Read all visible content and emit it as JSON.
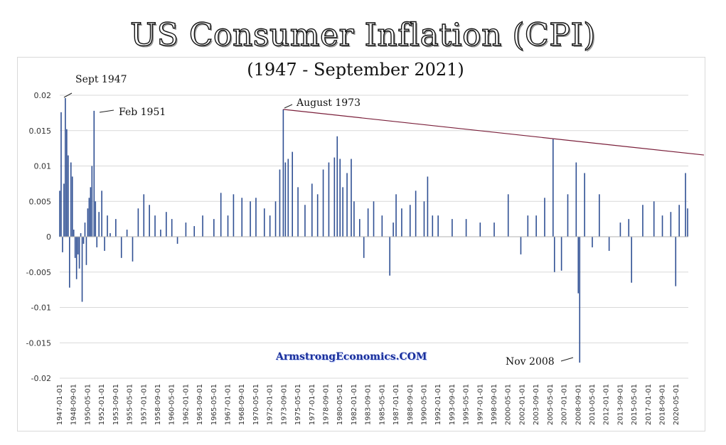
{
  "chart_data": {
    "type": "bar",
    "title": "US Consumer Inflation (CPI)",
    "subtitle": "(1947 - September 2021)",
    "xlabel": "",
    "ylabel": "",
    "ylim": [
      -0.02,
      0.02
    ],
    "y_ticks": [
      "0.02",
      "0.015",
      "0.01",
      "0.005",
      "0",
      "-0.005",
      "-0.01",
      "-0.015",
      "-0.02"
    ],
    "x_tick_labels": [
      "1947-01-01",
      "1948-09-01",
      "1950-05-01",
      "1952-01-01",
      "1953-09-01",
      "1955-05-01",
      "1957-01-01",
      "1958-09-01",
      "1960-05-01",
      "1962-01-01",
      "1963-09-01",
      "1965-05-01",
      "1967-01-01",
      "1968-09-01",
      "1970-05-01",
      "1972-01-01",
      "1973-09-01",
      "1975-05-01",
      "1977-01-01",
      "1978-09-01",
      "1980-05-01",
      "1982-01-01",
      "1983-09-01",
      "1985-05-01",
      "1987-01-01",
      "1988-09-01",
      "1990-05-01",
      "1992-01-01",
      "1993-09-01",
      "1995-05-01",
      "1997-01-01",
      "1998-09-01",
      "2000-05-01",
      "2002-01-01",
      "2003-09-01",
      "2005-05-01",
      "2007-01-01",
      "2008-09-01",
      "2010-05-01",
      "2012-01-01",
      "2013-09-01",
      "2015-05-01",
      "2017-01-01",
      "2018-09-01",
      "2020-05-01"
    ],
    "series": [
      {
        "name": "",
        "color": "#2f4f93",
        "points": [
          {
            "x": "1947-01",
            "y": 0.0065
          },
          {
            "x": "1947-03",
            "y": 0.0176
          },
          {
            "x": "1947-05",
            "y": -0.0022
          },
          {
            "x": "1947-07",
            "y": 0.0075
          },
          {
            "x": "1947-09",
            "y": 0.0196
          },
          {
            "x": "1947-11",
            "y": 0.0152
          },
          {
            "x": "1948-01",
            "y": 0.0115
          },
          {
            "x": "1948-03",
            "y": -0.0072
          },
          {
            "x": "1948-05",
            "y": 0.0105
          },
          {
            "x": "1948-07",
            "y": 0.0085
          },
          {
            "x": "1948-09",
            "y": 0.001
          },
          {
            "x": "1948-11",
            "y": -0.003
          },
          {
            "x": "1949-01",
            "y": -0.006
          },
          {
            "x": "1949-03",
            "y": -0.0025
          },
          {
            "x": "1949-05",
            "y": -0.0045
          },
          {
            "x": "1949-07",
            "y": 0.0005
          },
          {
            "x": "1949-09",
            "y": -0.0092
          },
          {
            "x": "1949-11",
            "y": -0.001
          },
          {
            "x": "1950-01",
            "y": 0.002
          },
          {
            "x": "1950-03",
            "y": -0.004
          },
          {
            "x": "1950-05",
            "y": 0.004
          },
          {
            "x": "1950-07",
            "y": 0.0055
          },
          {
            "x": "1950-09",
            "y": 0.007
          },
          {
            "x": "1950-11",
            "y": 0.01
          },
          {
            "x": "1951-02",
            "y": 0.0178
          },
          {
            "x": "1951-04",
            "y": 0.005
          },
          {
            "x": "1951-06",
            "y": -0.0015
          },
          {
            "x": "1951-09",
            "y": 0.0035
          },
          {
            "x": "1952-01",
            "y": 0.0065
          },
          {
            "x": "1952-05",
            "y": -0.002
          },
          {
            "x": "1952-09",
            "y": 0.003
          },
          {
            "x": "1953-01",
            "y": 0.0005
          },
          {
            "x": "1953-09",
            "y": 0.0025
          },
          {
            "x": "1954-05",
            "y": -0.003
          },
          {
            "x": "1955-01",
            "y": 0.001
          },
          {
            "x": "1955-09",
            "y": -0.0035
          },
          {
            "x": "1956-05",
            "y": 0.004
          },
          {
            "x": "1957-01",
            "y": 0.006
          },
          {
            "x": "1957-09",
            "y": 0.0045
          },
          {
            "x": "1958-05",
            "y": 0.003
          },
          {
            "x": "1959-01",
            "y": 0.001
          },
          {
            "x": "1959-09",
            "y": 0.0035
          },
          {
            "x": "1960-05",
            "y": 0.0025
          },
          {
            "x": "1961-01",
            "y": -0.001
          },
          {
            "x": "1962-01",
            "y": 0.002
          },
          {
            "x": "1963-01",
            "y": 0.0015
          },
          {
            "x": "1964-01",
            "y": 0.003
          },
          {
            "x": "1965-05",
            "y": 0.0025
          },
          {
            "x": "1966-03",
            "y": 0.0062
          },
          {
            "x": "1967-01",
            "y": 0.003
          },
          {
            "x": "1967-09",
            "y": 0.006
          },
          {
            "x": "1968-09",
            "y": 0.0055
          },
          {
            "x": "1969-09",
            "y": 0.005
          },
          {
            "x": "1970-05",
            "y": 0.0055
          },
          {
            "x": "1971-05",
            "y": 0.004
          },
          {
            "x": "1972-01",
            "y": 0.003
          },
          {
            "x": "1972-09",
            "y": 0.005
          },
          {
            "x": "1973-03",
            "y": 0.0095
          },
          {
            "x": "1973-08",
            "y": 0.018
          },
          {
            "x": "1973-11",
            "y": 0.0105
          },
          {
            "x": "1974-03",
            "y": 0.011
          },
          {
            "x": "1974-09",
            "y": 0.012
          },
          {
            "x": "1975-05",
            "y": 0.007
          },
          {
            "x": "1976-03",
            "y": 0.0045
          },
          {
            "x": "1977-01",
            "y": 0.0075
          },
          {
            "x": "1977-09",
            "y": 0.006
          },
          {
            "x": "1978-05",
            "y": 0.0095
          },
          {
            "x": "1979-01",
            "y": 0.0105
          },
          {
            "x": "1979-09",
            "y": 0.0112
          },
          {
            "x": "1980-01",
            "y": 0.0142
          },
          {
            "x": "1980-05",
            "y": 0.011
          },
          {
            "x": "1980-09",
            "y": 0.007
          },
          {
            "x": "1981-03",
            "y": 0.009
          },
          {
            "x": "1981-09",
            "y": 0.011
          },
          {
            "x": "1982-01",
            "y": 0.005
          },
          {
            "x": "1982-09",
            "y": 0.0025
          },
          {
            "x": "1983-03",
            "y": -0.003
          },
          {
            "x": "1983-09",
            "y": 0.004
          },
          {
            "x": "1984-05",
            "y": 0.005
          },
          {
            "x": "1985-05",
            "y": 0.003
          },
          {
            "x": "1986-04",
            "y": -0.0055
          },
          {
            "x": "1986-09",
            "y": 0.002
          },
          {
            "x": "1987-01",
            "y": 0.006
          },
          {
            "x": "1987-09",
            "y": 0.004
          },
          {
            "x": "1988-09",
            "y": 0.0045
          },
          {
            "x": "1989-05",
            "y": 0.0065
          },
          {
            "x": "1990-05",
            "y": 0.005
          },
          {
            "x": "1990-10",
            "y": 0.0085
          },
          {
            "x": "1991-05",
            "y": 0.003
          },
          {
            "x": "1992-01",
            "y": 0.003
          },
          {
            "x": "1993-09",
            "y": 0.0025
          },
          {
            "x": "1995-05",
            "y": 0.0025
          },
          {
            "x": "1997-01",
            "y": 0.002
          },
          {
            "x": "1998-09",
            "y": 0.002
          },
          {
            "x": "2000-05",
            "y": 0.006
          },
          {
            "x": "2001-11",
            "y": -0.0025
          },
          {
            "x": "2002-09",
            "y": 0.003
          },
          {
            "x": "2003-09",
            "y": 0.003
          },
          {
            "x": "2004-09",
            "y": 0.0055
          },
          {
            "x": "2005-09",
            "y": 0.0138
          },
          {
            "x": "2005-11",
            "y": -0.005
          },
          {
            "x": "2006-09",
            "y": -0.0048
          },
          {
            "x": "2007-06",
            "y": 0.006
          },
          {
            "x": "2008-06",
            "y": 0.0105
          },
          {
            "x": "2008-09",
            "y": -0.008
          },
          {
            "x": "2008-11",
            "y": -0.0178
          },
          {
            "x": "2009-06",
            "y": 0.009
          },
          {
            "x": "2010-05",
            "y": -0.0015
          },
          {
            "x": "2011-03",
            "y": 0.006
          },
          {
            "x": "2012-05",
            "y": -0.002
          },
          {
            "x": "2013-09",
            "y": 0.002
          },
          {
            "x": "2014-09",
            "y": 0.0025
          },
          {
            "x": "2015-01",
            "y": -0.0065
          },
          {
            "x": "2016-05",
            "y": 0.0045
          },
          {
            "x": "2017-09",
            "y": 0.005
          },
          {
            "x": "2018-09",
            "y": 0.003
          },
          {
            "x": "2019-09",
            "y": 0.0035
          },
          {
            "x": "2020-04",
            "y": -0.007
          },
          {
            "x": "2020-09",
            "y": 0.0045
          },
          {
            "x": "2021-06",
            "y": 0.009
          },
          {
            "x": "2021-09",
            "y": 0.004
          }
        ]
      }
    ],
    "trendline": {
      "color": "#7a1f3a",
      "from": {
        "x": "1973-08",
        "y": 0.018
      },
      "to": {
        "x": "2021-09",
        "y": 0.0118
      }
    },
    "grid": true,
    "legend": "none",
    "annotations": [
      {
        "text": "Sept 1947",
        "x": "1947-09",
        "y": 0.0196
      },
      {
        "text": "Feb 1951",
        "x": "1951-02",
        "y": 0.0178
      },
      {
        "text": "August 1973",
        "x": "1973-08",
        "y": 0.018
      },
      {
        "text": "Nov 2008",
        "x": "2008-11",
        "y": -0.0178
      }
    ],
    "watermark": "ArmstrongEconomics.COM"
  }
}
